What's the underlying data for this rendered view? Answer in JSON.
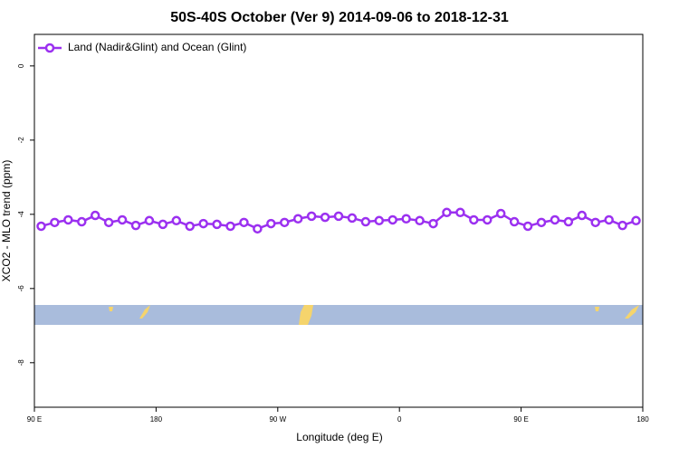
{
  "chart_data": {
    "type": "line",
    "title": "50S-40S October (Ver 9)   2014-09-06 to 2018-12-31",
    "x_label": "Longitude (deg E)",
    "y_label": "XCO2 - MLO trend (ppm)",
    "x": [
      95,
      105,
      115,
      125,
      135,
      145,
      155,
      165,
      175,
      185,
      195,
      205,
      215,
      225,
      235,
      245,
      255,
      265,
      275,
      285,
      295,
      305,
      315,
      325,
      335,
      345,
      355,
      365,
      375,
      385,
      395,
      405,
      415,
      425,
      435,
      445,
      455,
      465,
      475,
      485,
      495,
      505,
      515,
      525,
      535
    ],
    "series": [
      {
        "name": "Land (Nadir&Glint) and Ocean (Glint)",
        "color": "#9b30f0",
        "values": [
          -4.32,
          -4.22,
          -4.15,
          -4.2,
          -4.03,
          -4.22,
          -4.15,
          -4.3,
          -4.17,
          -4.27,
          -4.17,
          -4.32,
          -4.25,
          -4.27,
          -4.32,
          -4.22,
          -4.39,
          -4.25,
          -4.22,
          -4.12,
          -4.05,
          -4.08,
          -4.05,
          -4.1,
          -4.2,
          -4.17,
          -4.15,
          -4.12,
          -4.17,
          -4.25,
          -3.95,
          -3.95,
          -4.15,
          -4.15,
          -3.98,
          -4.2,
          -4.32,
          -4.22,
          -4.15,
          -4.2,
          -4.03,
          -4.22,
          -4.15,
          -4.3,
          -4.17
        ]
      }
    ],
    "xlim": [
      90,
      540
    ],
    "xticks": [
      {
        "value": 90,
        "label": "90 E"
      },
      {
        "value": 180,
        "label": "180"
      },
      {
        "value": 270,
        "label": "90 W"
      },
      {
        "value": 360,
        "label": "0"
      },
      {
        "value": 450,
        "label": "90 E"
      },
      {
        "value": 540,
        "label": "180"
      }
    ],
    "ylim": [
      -9.2,
      0.85
    ],
    "yticks": [
      0,
      -2,
      -4,
      -6,
      -8
    ],
    "legend": "top-left"
  }
}
